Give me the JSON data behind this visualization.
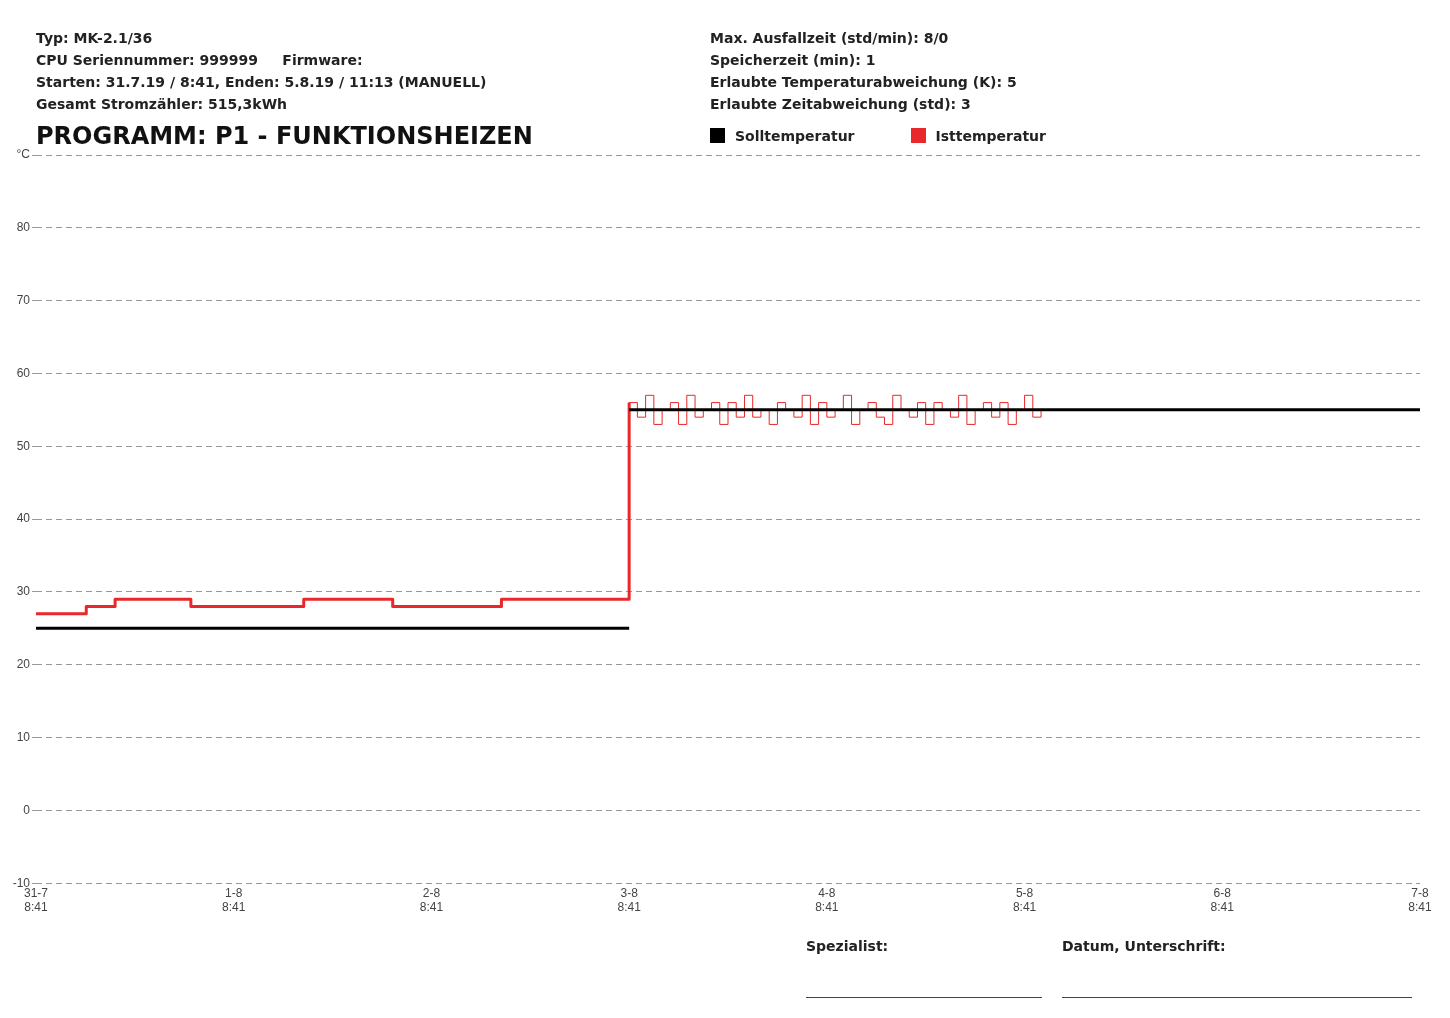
{
  "chart_data": {
    "type": "step",
    "title": "PROGRAMM: P1 - FUNKTIONSHEIZEN",
    "annotations": [
      "Typ: MK-2.1/36",
      "CPU Seriennummer: 999999     Firmware:",
      "Starten: 31.7.19 / 8:41, Enden: 5.8.19 / 11:13 (MANUELL)",
      "Gesamt Stromzähler: 515,3kWh",
      "Max. Ausfallzeit (std/min): 8/0",
      "Speicherzeit (min): 1",
      "Erlaubte Temperaturabweichung (K): 5",
      "Erlaubte Zeitabweichung (std): 3",
      "Spezialist:",
      "Datum, Unterschrift:"
    ],
    "series": [
      {
        "name": "Solltemperatur",
        "color": "#000000",
        "x": [
          "--07-31T08:41",
          "--08-03T08:41"
        ],
        "values": [
          25,
          25
        ]
      },
      {
        "color": "#000000",
        "x": [
          "--08-03T08:41",
          "--08-07T08:41"
        ],
        "values": [
          55,
          55
        ]
      },
      {
        "name": "Isttemperatur",
        "color": "#e8282b",
        "x": [
          "--07-31T08:41",
          "--07-31T14:47",
          "--07-31T18:17",
          "--08-01T03:29",
          "--08-01T17:11",
          "--08-02T03:59",
          "--08-02T17:11",
          "--08-03T08:41",
          "--08-03T09:41",
          "--08-03T10:41",
          "--08-03T11:41",
          "--08-03T12:41",
          "--08-03T13:41",
          "--08-03T14:41",
          "--08-03T15:41",
          "--08-03T16:41",
          "--08-03T17:41",
          "--08-03T18:41",
          "--08-03T19:41",
          "--08-03T20:41",
          "--08-03T21:41",
          "--08-03T22:41",
          "--08-03T23:41",
          "--08-04T00:41",
          "--08-04T01:41",
          "--08-04T02:41",
          "--08-04T03:41",
          "--08-04T04:41",
          "--08-04T05:41",
          "--08-04T06:41",
          "--08-04T07:41",
          "--08-04T08:41",
          "--08-04T09:41",
          "--08-04T10:41",
          "--08-04T11:41",
          "--08-04T12:41",
          "--08-04T13:41",
          "--08-04T14:41",
          "--08-04T15:41",
          "--08-04T16:41",
          "--08-04T17:41",
          "--08-04T18:41",
          "--08-04T19:41",
          "--08-04T20:41",
          "--08-04T21:41",
          "--08-04T22:41",
          "--08-04T23:41",
          "--08-05T00:41",
          "--08-05T01:41",
          "--08-05T02:41",
          "--08-05T03:41",
          "--08-05T04:41",
          "--08-05T05:41",
          "--08-05T06:41",
          "--08-05T07:41",
          "--08-05T08:41",
          "--08-05T09:41",
          "--08-05T10:41",
          "--08-05T11:13"
        ],
        "values": [
          27,
          28,
          29,
          28,
          29,
          28,
          29,
          56,
          54,
          57,
          53,
          55,
          56,
          53,
          57,
          54,
          55,
          56,
          53,
          56,
          54,
          57,
          54,
          55,
          53,
          56,
          55,
          54,
          57,
          53,
          56,
          54,
          55,
          57,
          53,
          55,
          56,
          54,
          53,
          57,
          55,
          54,
          56,
          53,
          56,
          55,
          54,
          57,
          53,
          55,
          56,
          54,
          56,
          53,
          55,
          57,
          54,
          55,
          55
        ]
      }
    ],
    "xlim": [
      "--07-31T08:41",
      "--08-07T08:41"
    ],
    "xticks": [
      {
        "value": "--07-31T08:41",
        "label": "31-7 8:41"
      },
      {
        "value": "--08-01T08:41",
        "label": "1-8 8:41"
      },
      {
        "value": "--08-02T08:41",
        "label": "2-8 8:41"
      },
      {
        "value": "--08-03T08:41",
        "label": "3-8 8:41"
      },
      {
        "value": "--08-04T08:41",
        "label": "4-8 8:41"
      },
      {
        "value": "--08-05T08:41",
        "label": "5-8 8:41"
      },
      {
        "value": "--08-06T08:41",
        "label": "6-8 8:41"
      },
      {
        "value": "--08-07T08:41",
        "label": "7-8 8:41"
      }
    ],
    "ylim": [
      -10,
      90
    ],
    "yticks": [
      -10,
      0,
      10,
      20,
      30,
      40,
      50,
      60,
      70,
      80,
      {
        "value": 90,
        "label": "°C"
      }
    ],
    "grid": "y",
    "legend": "top",
    "marker": "none"
  }
}
